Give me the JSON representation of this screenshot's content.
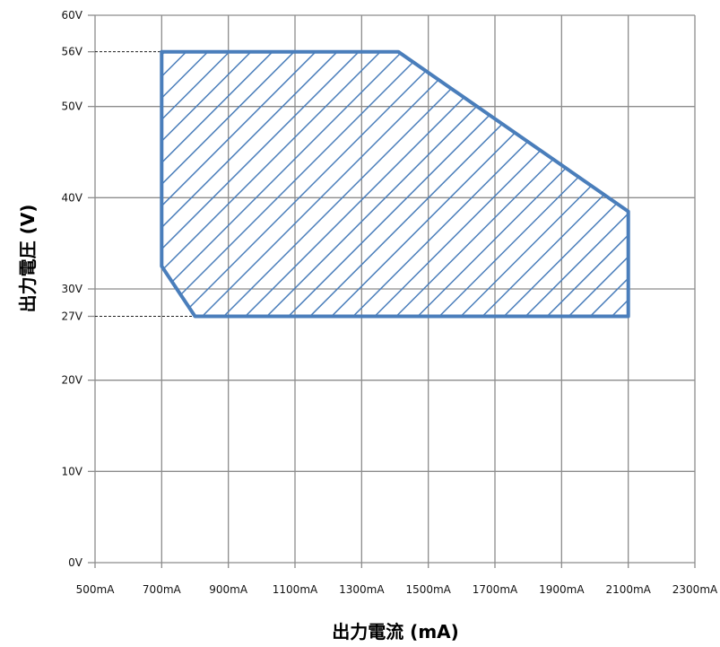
{
  "chart_data": {
    "type": "area",
    "xlabel": "出力電流 (mA)",
    "ylabel": "出力電圧 (V)",
    "xlim": [
      500,
      2300
    ],
    "ylim": [
      0,
      60
    ],
    "x_ticks": [
      500,
      700,
      900,
      1100,
      1300,
      1500,
      1700,
      1900,
      2100,
      2300
    ],
    "x_tick_labels": [
      "500mA",
      "700mA",
      "900mA",
      "1100mA",
      "1300mA",
      "1500mA",
      "1700mA",
      "1900mA",
      "2100mA",
      "2300mA"
    ],
    "y_ticks": [
      0,
      10,
      20,
      27,
      30,
      40,
      50,
      56,
      60
    ],
    "y_tick_labels": [
      "0V",
      "10V",
      "20V",
      "27V",
      "30V",
      "40V",
      "50V",
      "56V",
      "60V"
    ],
    "y_gridlines": [
      0,
      10,
      20,
      30,
      40,
      50,
      60
    ],
    "grid": true,
    "region": {
      "x": [
        700,
        1410,
        2100,
        2100,
        800,
        700,
        700
      ],
      "y": [
        56,
        56,
        38.5,
        27,
        27,
        32.5,
        56
      ],
      "fill": "hatched",
      "color": "#4A7EBB"
    },
    "reference_lines": [
      {
        "y": 56,
        "x_start": 500,
        "x_end": 700,
        "style": "dashed"
      },
      {
        "y": 27,
        "x_start": 500,
        "x_end": 800,
        "style": "dashed"
      }
    ],
    "colors": {
      "grid": "#8c8c8c",
      "hatch": "#4A7EBB",
      "text": "#111111"
    }
  }
}
